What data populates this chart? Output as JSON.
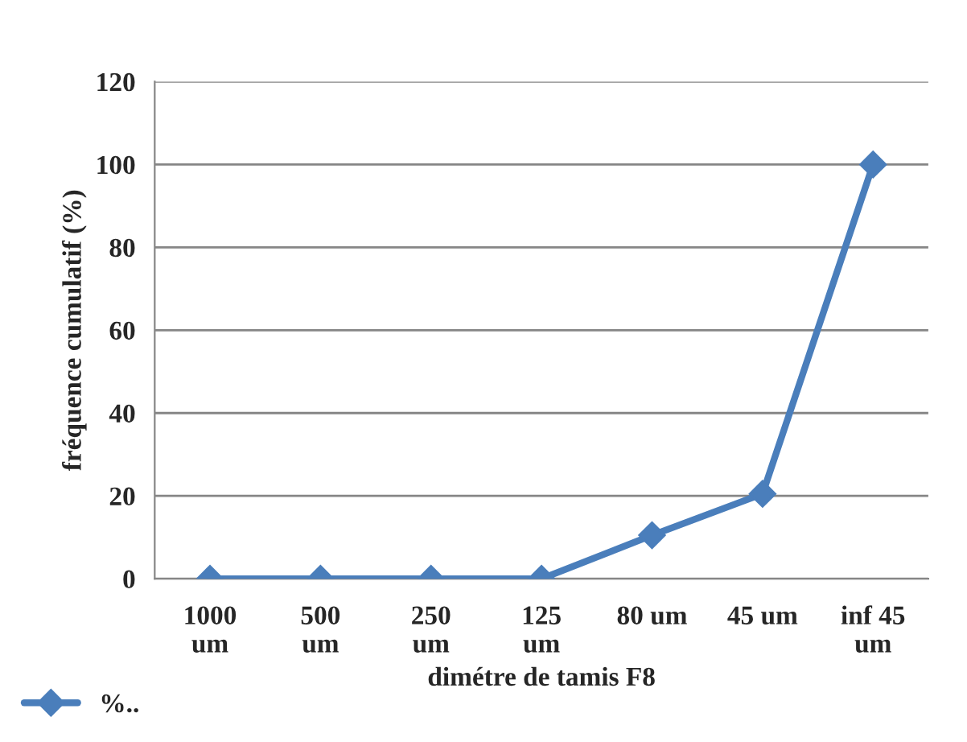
{
  "chart_data": {
    "type": "line",
    "xlabel": "dimétre de tamis F8",
    "ylabel": "fréquence cumulatif (%)",
    "categories": [
      "1000 um",
      "500 um",
      "250 um",
      "125 um",
      "80 um",
      "45 um",
      "inf 45 um"
    ],
    "series": [
      {
        "name": "%..",
        "color": "#4a7ebb",
        "values": [
          0,
          0,
          0,
          0,
          10.5,
          20.5,
          100
        ]
      }
    ],
    "ylim": [
      0,
      120
    ],
    "yticks": [
      0,
      20,
      40,
      60,
      80,
      100,
      120
    ],
    "grid": "y",
    "legend": "bottom left",
    "marker": "diamond",
    "line_style": "solid"
  }
}
